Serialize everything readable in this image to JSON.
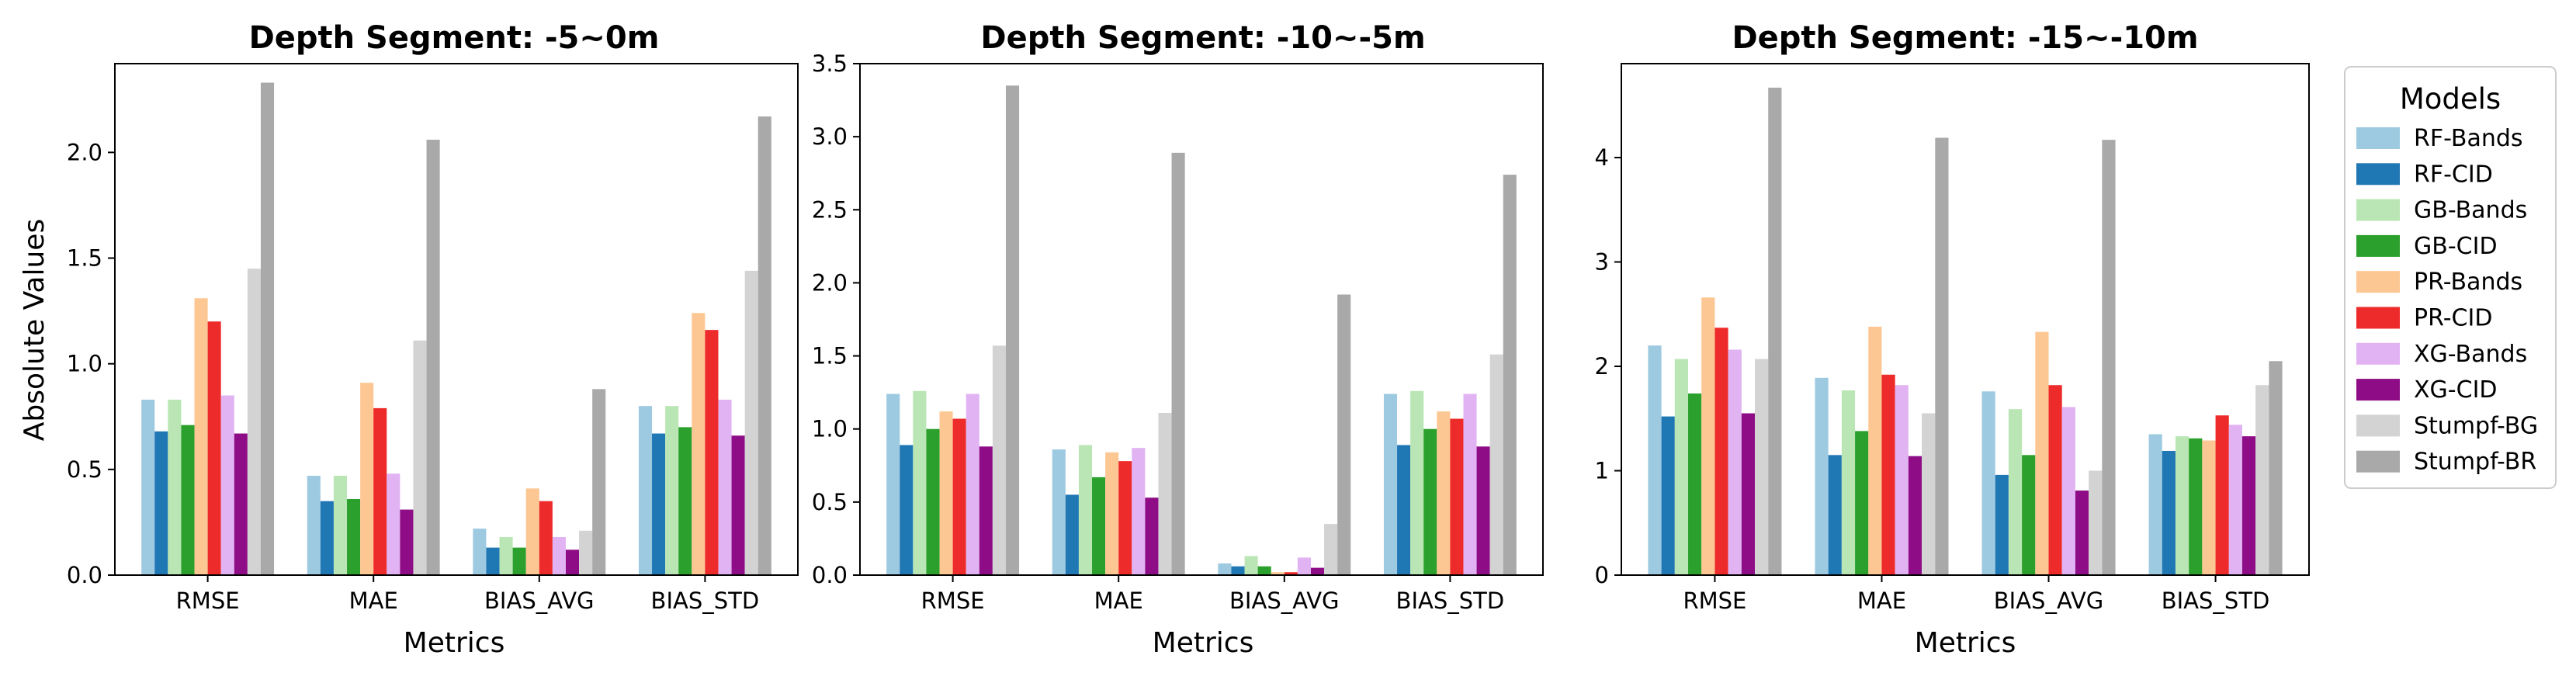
{
  "figure": {
    "legend": {
      "title": "Models",
      "placement": "right"
    }
  },
  "series_colors": {
    "RF-Bands": "#9ecae1",
    "RF-CID": "#1f77b4",
    "GB-Bands": "#b9e6b4",
    "GB-CID": "#2ca02c",
    "PR-Bands": "#fdc793",
    "PR-CID": "#ee2b2b",
    "XG-Bands": "#e1b3f3",
    "XG-CID": "#8e0c86",
    "Stumpf-BG": "#d3d3d3",
    "Stumpf-BR": "#a9a9a9"
  },
  "chart_data": [
    {
      "type": "bar",
      "title": "Depth Segment: -5~0m",
      "xlabel": "Metrics",
      "ylabel": "Absolute Values",
      "ylim": [
        0,
        2.42
      ],
      "yticks": [
        "0.0",
        "0.5",
        "1.0",
        "1.5",
        "2.0"
      ],
      "categories": [
        "RMSE",
        "MAE",
        "BIAS_AVG",
        "BIAS_STD"
      ],
      "series": [
        {
          "name": "RF-Bands",
          "values": [
            0.83,
            0.47,
            0.22,
            0.8
          ]
        },
        {
          "name": "RF-CID",
          "values": [
            0.68,
            0.35,
            0.13,
            0.67
          ]
        },
        {
          "name": "GB-Bands",
          "values": [
            0.83,
            0.47,
            0.18,
            0.8
          ]
        },
        {
          "name": "GB-CID",
          "values": [
            0.71,
            0.36,
            0.13,
            0.7
          ]
        },
        {
          "name": "PR-Bands",
          "values": [
            1.31,
            0.91,
            0.41,
            1.24
          ]
        },
        {
          "name": "PR-CID",
          "values": [
            1.2,
            0.79,
            0.35,
            1.16
          ]
        },
        {
          "name": "XG-Bands",
          "values": [
            0.85,
            0.48,
            0.18,
            0.83
          ]
        },
        {
          "name": "XG-CID",
          "values": [
            0.67,
            0.31,
            0.12,
            0.66
          ]
        },
        {
          "name": "Stumpf-BG",
          "values": [
            1.45,
            1.11,
            0.21,
            1.44
          ]
        },
        {
          "name": "Stumpf-BR",
          "values": [
            2.33,
            2.06,
            0.88,
            2.17
          ]
        }
      ]
    },
    {
      "type": "bar",
      "title": "Depth Segment: -10~-5m",
      "xlabel": "Metrics",
      "ylabel": "",
      "ylim": [
        0,
        3.5
      ],
      "yticks": [
        "0.0",
        "0.5",
        "1.0",
        "1.5",
        "2.0",
        "2.5",
        "3.0",
        "3.5"
      ],
      "categories": [
        "RMSE",
        "MAE",
        "BIAS_AVG",
        "BIAS_STD"
      ],
      "series": [
        {
          "name": "RF-Bands",
          "values": [
            1.24,
            0.86,
            0.08,
            1.24
          ]
        },
        {
          "name": "RF-CID",
          "values": [
            0.89,
            0.55,
            0.06,
            0.89
          ]
        },
        {
          "name": "GB-Bands",
          "values": [
            1.26,
            0.89,
            0.13,
            1.26
          ]
        },
        {
          "name": "GB-CID",
          "values": [
            1.0,
            0.67,
            0.06,
            1.0
          ]
        },
        {
          "name": "PR-Bands",
          "values": [
            1.12,
            0.84,
            0.02,
            1.12
          ]
        },
        {
          "name": "PR-CID",
          "values": [
            1.07,
            0.78,
            0.02,
            1.07
          ]
        },
        {
          "name": "XG-Bands",
          "values": [
            1.24,
            0.87,
            0.12,
            1.24
          ]
        },
        {
          "name": "XG-CID",
          "values": [
            0.88,
            0.53,
            0.05,
            0.88
          ]
        },
        {
          "name": "Stumpf-BG",
          "values": [
            1.57,
            1.11,
            0.35,
            1.51
          ]
        },
        {
          "name": "Stumpf-BR",
          "values": [
            3.35,
            2.89,
            1.92,
            2.74
          ]
        }
      ]
    },
    {
      "type": "bar",
      "title": "Depth Segment: -15~-10m",
      "xlabel": "Metrics",
      "ylabel": "",
      "ylim": [
        0,
        4.9
      ],
      "yticks": [
        "0",
        "1",
        "2",
        "3",
        "4"
      ],
      "categories": [
        "RMSE",
        "MAE",
        "BIAS_AVG",
        "BIAS_STD"
      ],
      "series": [
        {
          "name": "RF-Bands",
          "values": [
            2.2,
            1.89,
            1.76,
            1.35
          ]
        },
        {
          "name": "RF-CID",
          "values": [
            1.52,
            1.15,
            0.96,
            1.19
          ]
        },
        {
          "name": "GB-Bands",
          "values": [
            2.07,
            1.77,
            1.59,
            1.33
          ]
        },
        {
          "name": "GB-CID",
          "values": [
            1.74,
            1.38,
            1.15,
            1.31
          ]
        },
        {
          "name": "PR-Bands",
          "values": [
            2.66,
            2.38,
            2.33,
            1.29
          ]
        },
        {
          "name": "PR-CID",
          "values": [
            2.37,
            1.92,
            1.82,
            1.53
          ]
        },
        {
          "name": "XG-Bands",
          "values": [
            2.16,
            1.82,
            1.61,
            1.44
          ]
        },
        {
          "name": "XG-CID",
          "values": [
            1.55,
            1.14,
            0.81,
            1.33
          ]
        },
        {
          "name": "Stumpf-BG",
          "values": [
            2.07,
            1.55,
            1.0,
            1.82
          ]
        },
        {
          "name": "Stumpf-BR",
          "values": [
            4.67,
            4.19,
            4.17,
            2.05
          ]
        }
      ]
    }
  ]
}
